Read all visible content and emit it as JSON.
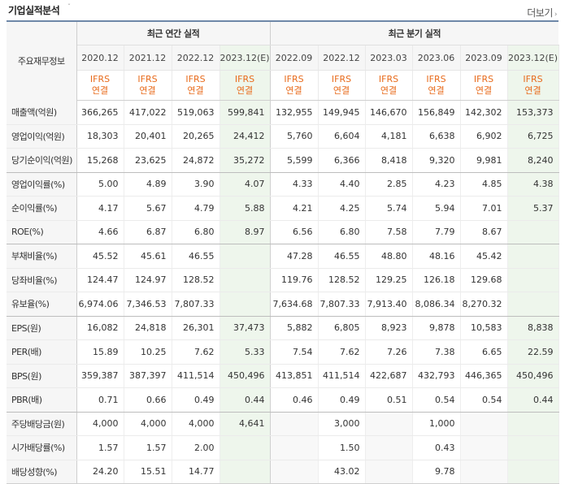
{
  "header": {
    "title": "기업실적분석",
    "more_label": "더보기"
  },
  "table": {
    "label_header": "주요재무정보",
    "annual_group": "최근 연간 실적",
    "quarter_group": "최근 분기 실적",
    "annual_periods": [
      "2020.12",
      "2021.12",
      "2022.12",
      "2023.12(E)"
    ],
    "quarter_periods": [
      "2022.09",
      "2022.12",
      "2023.03",
      "2023.06",
      "2023.09",
      "2023.12(E)"
    ],
    "standard_top": "IFRS",
    "standard_bottom": "연결",
    "rows": [
      {
        "label": "매출액(억원)",
        "annual": [
          "366,265",
          "417,022",
          "519,063",
          "599,841"
        ],
        "quarter": [
          "132,955",
          "149,945",
          "146,670",
          "156,849",
          "142,302",
          "153,373"
        ]
      },
      {
        "label": "영업이익(억원)",
        "annual": [
          "18,303",
          "20,401",
          "20,265",
          "24,412"
        ],
        "quarter": [
          "5,760",
          "6,604",
          "4,181",
          "6,638",
          "6,902",
          "6,725"
        ]
      },
      {
        "label": "당기순이익(억원)",
        "annual": [
          "15,268",
          "23,625",
          "24,872",
          "35,272"
        ],
        "quarter": [
          "5,599",
          "6,366",
          "8,418",
          "9,320",
          "9,981",
          "8,240"
        ]
      },
      {
        "label": "영업이익률(%)",
        "annual": [
          "5.00",
          "4.89",
          "3.90",
          "4.07"
        ],
        "quarter": [
          "4.33",
          "4.40",
          "2.85",
          "4.23",
          "4.85",
          "4.38"
        ]
      },
      {
        "label": "순이익률(%)",
        "annual": [
          "4.17",
          "5.67",
          "4.79",
          "5.88"
        ],
        "quarter": [
          "4.21",
          "4.25",
          "5.74",
          "5.94",
          "7.01",
          "5.37"
        ]
      },
      {
        "label": "ROE(%)",
        "annual": [
          "4.66",
          "6.87",
          "6.80",
          "8.97"
        ],
        "quarter": [
          "6.56",
          "6.80",
          "7.58",
          "7.79",
          "8.67",
          ""
        ]
      },
      {
        "label": "부채비율(%)",
        "annual": [
          "45.52",
          "45.61",
          "46.55",
          ""
        ],
        "quarter": [
          "47.28",
          "46.55",
          "48.80",
          "48.16",
          "45.42",
          ""
        ]
      },
      {
        "label": "당좌비율(%)",
        "annual": [
          "124.47",
          "124.97",
          "128.52",
          ""
        ],
        "quarter": [
          "119.76",
          "128.52",
          "129.25",
          "126.18",
          "129.68",
          ""
        ]
      },
      {
        "label": "유보율(%)",
        "annual": [
          "6,974.06",
          "7,346.53",
          "7,807.33",
          ""
        ],
        "quarter": [
          "7,634.68",
          "7,807.33",
          "7,913.40",
          "8,086.34",
          "8,270.32",
          ""
        ]
      },
      {
        "label": "EPS(원)",
        "annual": [
          "16,082",
          "24,818",
          "26,301",
          "37,473"
        ],
        "quarter": [
          "5,882",
          "6,805",
          "8,923",
          "9,878",
          "10,583",
          "8,838"
        ]
      },
      {
        "label": "PER(배)",
        "annual": [
          "15.89",
          "10.25",
          "7.62",
          "5.33"
        ],
        "quarter": [
          "7.54",
          "7.62",
          "7.26",
          "7.38",
          "6.65",
          "22.59"
        ]
      },
      {
        "label": "BPS(원)",
        "annual": [
          "359,387",
          "387,397",
          "411,514",
          "450,496"
        ],
        "quarter": [
          "413,851",
          "411,514",
          "422,687",
          "432,793",
          "446,365",
          "450,496"
        ]
      },
      {
        "label": "PBR(배)",
        "annual": [
          "0.71",
          "0.66",
          "0.49",
          "0.44"
        ],
        "quarter": [
          "0.46",
          "0.49",
          "0.51",
          "0.54",
          "0.54",
          "0.44"
        ]
      },
      {
        "label": "주당배당금(원)",
        "annual": [
          "4,000",
          "4,000",
          "4,000",
          "4,641"
        ],
        "quarter": [
          "",
          "3,000",
          "",
          "1,000",
          "",
          ""
        ]
      },
      {
        "label": "시가배당률(%)",
        "annual": [
          "1.57",
          "1.57",
          "2.00",
          ""
        ],
        "quarter": [
          "",
          "1.50",
          "",
          "0.43",
          "",
          ""
        ]
      },
      {
        "label": "배당성향(%)",
        "annual": [
          "24.20",
          "15.51",
          "14.77",
          ""
        ],
        "quarter": [
          "",
          "43.02",
          "",
          "9.78",
          "",
          ""
        ]
      }
    ]
  }
}
